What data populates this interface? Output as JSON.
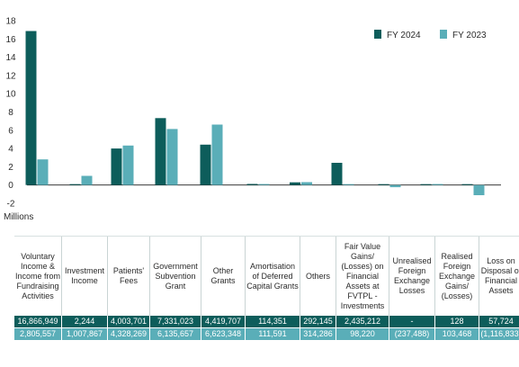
{
  "chart_data": {
    "type": "bar",
    "unit_label": "Millions",
    "ylim": [
      -2,
      18
    ],
    "yticks": [
      -2,
      0,
      2,
      4,
      6,
      8,
      10,
      12,
      14,
      16,
      18
    ],
    "grid": false,
    "legend_position": "top-right",
    "categories": [
      "Voluntary Income & Income from Fundraising Activities",
      "Investment Income",
      "Patients' Fees",
      "Government Subvention Grant",
      "Other Grants",
      "Amortisation of Deferred Capital Grants",
      "Others",
      "Fair Value Gains/ (Losses) on Financial Assets at FVTPL - Investments",
      "Unrealised Foreign Exchange Losses",
      "Realised Foreign Exchange Gains/ (Losses)",
      "Loss on Disposal of Financial Assets"
    ],
    "series": [
      {
        "name": "FY 2024",
        "color": "#0d5d5b",
        "values": [
          16.866949,
          0.002244,
          4.003701,
          7.331023,
          4.419707,
          0.114351,
          0.292145,
          2.435212,
          0,
          0.000128,
          0.057724
        ],
        "labels": [
          "16,866,949",
          "2,244",
          "4,003,701",
          "7,331,023",
          "4,419,707",
          "114,351",
          "292,145",
          "2,435,212",
          "-",
          "128",
          "57,724"
        ]
      },
      {
        "name": "FY 2023",
        "color": "#5aaeb8",
        "values": [
          2.805557,
          1.007867,
          4.328269,
          6.135657,
          6.623348,
          0.111591,
          0.314286,
          0.09822,
          -0.237488,
          0.103468,
          -1.116833
        ],
        "labels": [
          "2,805,557",
          "1,007,867",
          "4,328,269",
          "6,135,657",
          "6,623,348",
          "111,591",
          "314,286",
          "98,220",
          "(237,488)",
          "103,468",
          "(1,116,833)"
        ]
      }
    ]
  }
}
